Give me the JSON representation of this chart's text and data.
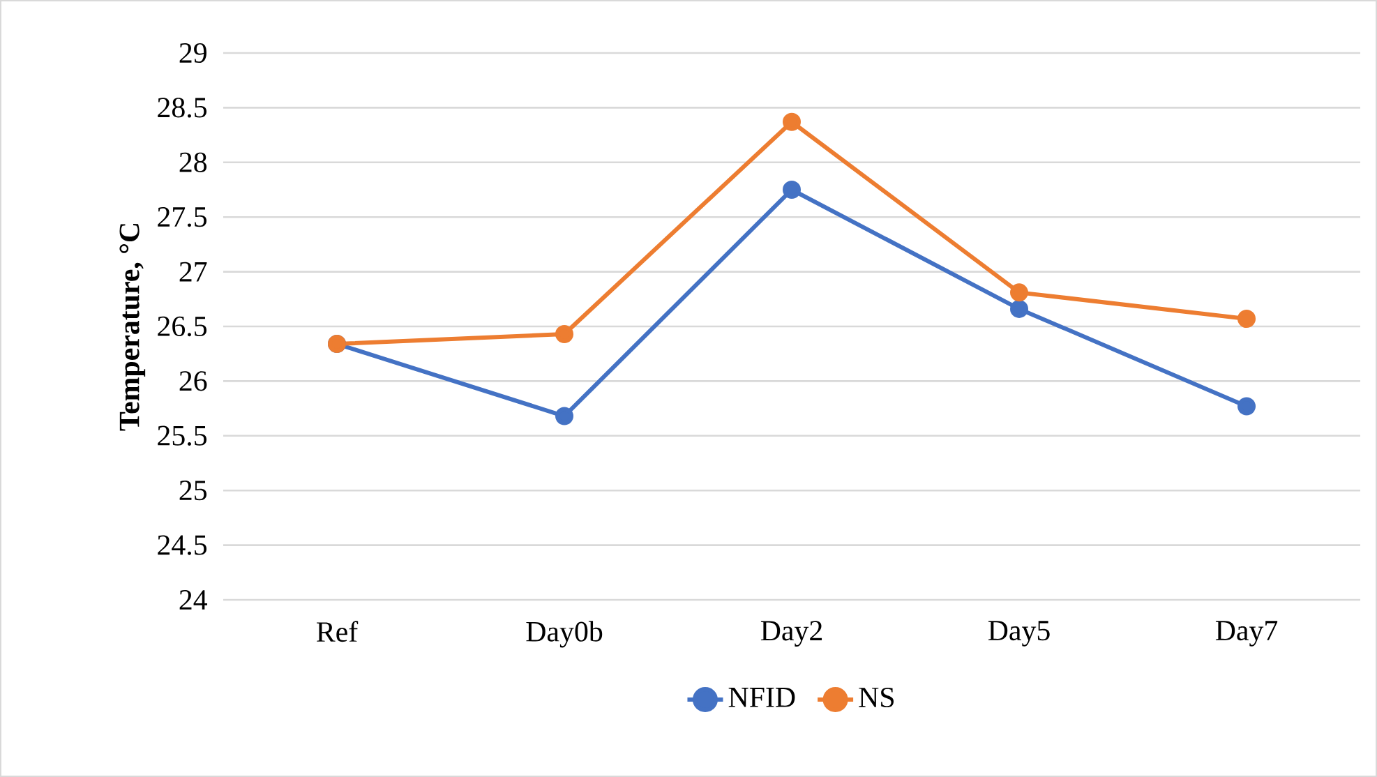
{
  "chart_data": {
    "type": "line",
    "ylabel": "Temperature, °C",
    "categories": [
      "Ref",
      "Day0b",
      "Day2",
      "Day5",
      "Day7"
    ],
    "series": [
      {
        "name": "NFID",
        "color": "#4472c4",
        "values": [
          26.34,
          25.68,
          27.75,
          26.66,
          25.77
        ]
      },
      {
        "name": "NS",
        "color": "#ed7d31",
        "values": [
          26.34,
          26.43,
          28.37,
          26.81,
          26.57
        ]
      }
    ],
    "ylim": [
      24,
      29
    ],
    "yticks": [
      24,
      24.5,
      25,
      25.5,
      26,
      26.5,
      27,
      27.5,
      28,
      28.5,
      29
    ],
    "grid": "y",
    "legend": "bottom",
    "marker": "circle",
    "line_style": "solid"
  }
}
